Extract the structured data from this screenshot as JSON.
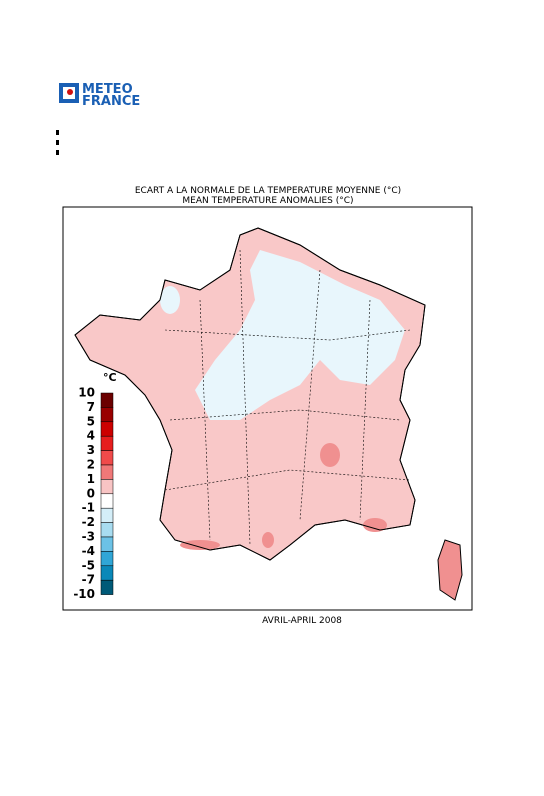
{
  "logo": {
    "line1": "METEO",
    "line2": "FRANCE"
  },
  "title": "ECART A LA NORMALE DE LA TEMPERATURE MOYENNE (°C)",
  "subtitle": "MEAN TEMPERATURE ANOMALIES (°C)",
  "legend": {
    "unit": "°C",
    "labels": [
      10,
      7,
      5,
      4,
      3,
      2,
      1,
      0,
      -1,
      -2,
      -3,
      -4,
      -5,
      -7,
      -10
    ],
    "colors": [
      "#6b0000",
      "#990000",
      "#cc0000",
      "#e61e1e",
      "#f04a4a",
      "#f07878",
      "#f8c4c4",
      "#ffffff",
      "#d4eef8",
      "#a8dcf0",
      "#6cc2e6",
      "#30a6d6",
      "#0a88b8",
      "#005a78"
    ]
  },
  "period": "AVRIL-APRIL 2008"
}
